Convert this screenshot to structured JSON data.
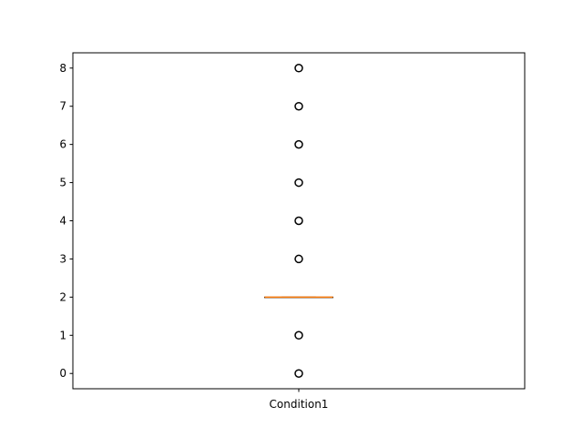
{
  "chart_data": {
    "type": "box",
    "categories": [
      "Condition1"
    ],
    "box": {
      "q1": 2,
      "median": 2,
      "q3": 2,
      "whisker_low": 2,
      "whisker_high": 2
    },
    "outliers": [
      0,
      1,
      3,
      4,
      5,
      6,
      7,
      8
    ],
    "ylim": [
      -0.4,
      8.4
    ],
    "yticks": [
      0,
      1,
      2,
      3,
      4,
      5,
      6,
      7,
      8
    ],
    "title": "",
    "xlabel": "",
    "ylabel": "",
    "grid": false
  },
  "colors": {
    "median": "#ff7f0e",
    "box": "#000000",
    "flier_edge": "#000000"
  }
}
